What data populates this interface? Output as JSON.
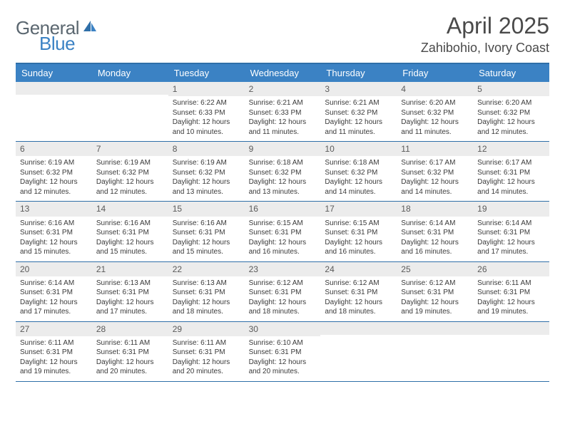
{
  "logo": {
    "word1": "General",
    "word2": "Blue"
  },
  "title": "April 2025",
  "location": "Zahibohio, Ivory Coast",
  "colors": {
    "header_bg": "#3b82c4",
    "header_text": "#ffffff",
    "border": "#2f6fa8",
    "daynum_bg": "#ececec",
    "text": "#3a3a3a",
    "logo_gray": "#5b6770",
    "logo_blue": "#3b82c4"
  },
  "day_names": [
    "Sunday",
    "Monday",
    "Tuesday",
    "Wednesday",
    "Thursday",
    "Friday",
    "Saturday"
  ],
  "weeks": [
    [
      null,
      null,
      {
        "n": "1",
        "sr": "6:22 AM",
        "ss": "6:33 PM",
        "dl": "12 hours and 10 minutes."
      },
      {
        "n": "2",
        "sr": "6:21 AM",
        "ss": "6:33 PM",
        "dl": "12 hours and 11 minutes."
      },
      {
        "n": "3",
        "sr": "6:21 AM",
        "ss": "6:32 PM",
        "dl": "12 hours and 11 minutes."
      },
      {
        "n": "4",
        "sr": "6:20 AM",
        "ss": "6:32 PM",
        "dl": "12 hours and 11 minutes."
      },
      {
        "n": "5",
        "sr": "6:20 AM",
        "ss": "6:32 PM",
        "dl": "12 hours and 12 minutes."
      }
    ],
    [
      {
        "n": "6",
        "sr": "6:19 AM",
        "ss": "6:32 PM",
        "dl": "12 hours and 12 minutes."
      },
      {
        "n": "7",
        "sr": "6:19 AM",
        "ss": "6:32 PM",
        "dl": "12 hours and 12 minutes."
      },
      {
        "n": "8",
        "sr": "6:19 AM",
        "ss": "6:32 PM",
        "dl": "12 hours and 13 minutes."
      },
      {
        "n": "9",
        "sr": "6:18 AM",
        "ss": "6:32 PM",
        "dl": "12 hours and 13 minutes."
      },
      {
        "n": "10",
        "sr": "6:18 AM",
        "ss": "6:32 PM",
        "dl": "12 hours and 14 minutes."
      },
      {
        "n": "11",
        "sr": "6:17 AM",
        "ss": "6:32 PM",
        "dl": "12 hours and 14 minutes."
      },
      {
        "n": "12",
        "sr": "6:17 AM",
        "ss": "6:31 PM",
        "dl": "12 hours and 14 minutes."
      }
    ],
    [
      {
        "n": "13",
        "sr": "6:16 AM",
        "ss": "6:31 PM",
        "dl": "12 hours and 15 minutes."
      },
      {
        "n": "14",
        "sr": "6:16 AM",
        "ss": "6:31 PM",
        "dl": "12 hours and 15 minutes."
      },
      {
        "n": "15",
        "sr": "6:16 AM",
        "ss": "6:31 PM",
        "dl": "12 hours and 15 minutes."
      },
      {
        "n": "16",
        "sr": "6:15 AM",
        "ss": "6:31 PM",
        "dl": "12 hours and 16 minutes."
      },
      {
        "n": "17",
        "sr": "6:15 AM",
        "ss": "6:31 PM",
        "dl": "12 hours and 16 minutes."
      },
      {
        "n": "18",
        "sr": "6:14 AM",
        "ss": "6:31 PM",
        "dl": "12 hours and 16 minutes."
      },
      {
        "n": "19",
        "sr": "6:14 AM",
        "ss": "6:31 PM",
        "dl": "12 hours and 17 minutes."
      }
    ],
    [
      {
        "n": "20",
        "sr": "6:14 AM",
        "ss": "6:31 PM",
        "dl": "12 hours and 17 minutes."
      },
      {
        "n": "21",
        "sr": "6:13 AM",
        "ss": "6:31 PM",
        "dl": "12 hours and 17 minutes."
      },
      {
        "n": "22",
        "sr": "6:13 AM",
        "ss": "6:31 PM",
        "dl": "12 hours and 18 minutes."
      },
      {
        "n": "23",
        "sr": "6:12 AM",
        "ss": "6:31 PM",
        "dl": "12 hours and 18 minutes."
      },
      {
        "n": "24",
        "sr": "6:12 AM",
        "ss": "6:31 PM",
        "dl": "12 hours and 18 minutes."
      },
      {
        "n": "25",
        "sr": "6:12 AM",
        "ss": "6:31 PM",
        "dl": "12 hours and 19 minutes."
      },
      {
        "n": "26",
        "sr": "6:11 AM",
        "ss": "6:31 PM",
        "dl": "12 hours and 19 minutes."
      }
    ],
    [
      {
        "n": "27",
        "sr": "6:11 AM",
        "ss": "6:31 PM",
        "dl": "12 hours and 19 minutes."
      },
      {
        "n": "28",
        "sr": "6:11 AM",
        "ss": "6:31 PM",
        "dl": "12 hours and 20 minutes."
      },
      {
        "n": "29",
        "sr": "6:11 AM",
        "ss": "6:31 PM",
        "dl": "12 hours and 20 minutes."
      },
      {
        "n": "30",
        "sr": "6:10 AM",
        "ss": "6:31 PM",
        "dl": "12 hours and 20 minutes."
      },
      null,
      null,
      null
    ]
  ],
  "labels": {
    "sunrise": "Sunrise:",
    "sunset": "Sunset:",
    "daylight": "Daylight:"
  }
}
